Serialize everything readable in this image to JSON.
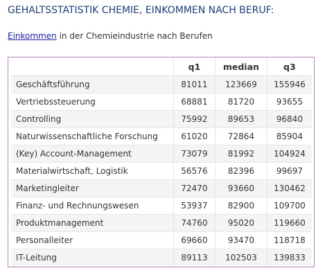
{
  "page": {
    "title": "GEHALTSSTATISTIK CHEMIE, EINKOMMEN NACH BERUF:",
    "intro_link": "Einkommen",
    "intro_text": " in der Chemieindustrie nach Berufen"
  },
  "colors": {
    "title": "#1f3f78",
    "link": "#1a1aa6",
    "table_border": "#b97fb9",
    "row_stripe": "#f4f4f4"
  },
  "table": {
    "headers": [
      "",
      "q1",
      "median",
      "q3"
    ],
    "rows": [
      [
        "Geschäftsführung",
        "81011",
        "123669",
        "155946"
      ],
      [
        "Vertriebssteuerung",
        "68881",
        "81720",
        "93655"
      ],
      [
        "Controlling",
        "75992",
        "89653",
        "96840"
      ],
      [
        "Naturwissenschaftliche Forschung",
        "61020",
        "72864",
        "85904"
      ],
      [
        "(Key) Account-Management",
        "73079",
        "81992",
        "104924"
      ],
      [
        "Materialwirtschaft, Logistik",
        "56576",
        "82396",
        "99697"
      ],
      [
        "Marketingleiter",
        "72470",
        "93660",
        "130462"
      ],
      [
        "Finanz- und Rechnungswesen",
        "53937",
        "82900",
        "109700"
      ],
      [
        "Produktmanagement",
        "74760",
        "95020",
        "119660"
      ],
      [
        "Personalleiter",
        "69660",
        "93470",
        "118718"
      ],
      [
        "IT-Leitung",
        "89113",
        "102503",
        "139833"
      ]
    ]
  }
}
